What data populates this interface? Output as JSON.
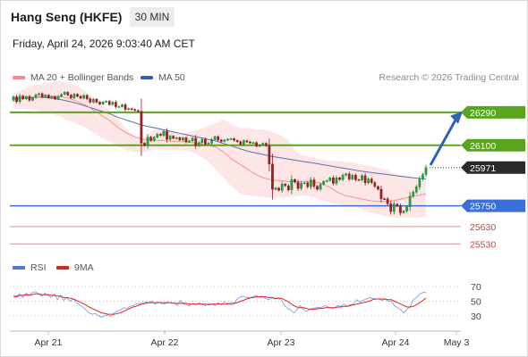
{
  "header": {
    "instrument": "Hang Seng (HKFE)",
    "timeframe": "30 MIN",
    "datetime": "Friday, April 24, 2026 9:03:40 AM CET"
  },
  "legend": {
    "ma20_label": "MA 20 + Bollinger Bands",
    "ma20_color": "#f28b8b",
    "ma50_label": "MA 50",
    "ma50_color": "#3a5fa8",
    "rsi_label": "RSI",
    "rsi_color": "#4a7ad8",
    "rsi_ma_label": "9MA",
    "rsi_ma_color": "#e02020"
  },
  "credit": "Research © 2026 Trading Central",
  "colors": {
    "resistance": "#5aa51e",
    "support": "#3a6fd8",
    "weak_support": "#f08a8a",
    "current_price_bg": "#2b2b2b",
    "candle_up": "#1e7d32",
    "candle_down": "#8b1a1a",
    "band_fill": "#fcdede",
    "arrow": "#2e63b4"
  },
  "chart_data": {
    "type": "candlestick",
    "price_range": [
      25480,
      26470
    ],
    "x_labels": [
      "Apr 21",
      "Apr 22",
      "Apr 23",
      "Apr 24",
      "May 3"
    ],
    "levels": [
      {
        "value": 26290,
        "label": "26290",
        "kind": "resistance"
      },
      {
        "value": 26100,
        "label": "26100",
        "kind": "resistance"
      },
      {
        "value": 25971,
        "label": "25971",
        "kind": "current"
      },
      {
        "value": 25750,
        "label": "25750",
        "kind": "support"
      },
      {
        "value": 25630,
        "label": "25630",
        "kind": "weak_support"
      },
      {
        "value": 25530,
        "label": "25530",
        "kind": "weak_support"
      }
    ],
    "close_series": [
      26380,
      26352,
      26385,
      26368,
      26382,
      26360,
      26375,
      26392,
      26398,
      26380,
      26390,
      26375,
      26381,
      26367,
      26383,
      26394,
      26406,
      26390,
      26374,
      26395,
      26383,
      26372,
      26388,
      26368,
      26349,
      26366,
      26349,
      26338,
      26350,
      26354,
      26335,
      26349,
      26323,
      26323,
      26334,
      26307,
      26312,
      26307,
      26301,
      26296,
      26112,
      26099,
      26147,
      26127,
      26146,
      26164,
      26157,
      26180,
      26134,
      26153,
      26140,
      26144,
      26130,
      26143,
      26120,
      26125,
      26141,
      26097,
      26115,
      26134,
      26107,
      26112,
      26134,
      26150,
      26130,
      26122,
      26130,
      26135,
      26138,
      26128,
      26121,
      26106,
      26126,
      26119,
      26114,
      26115,
      26095,
      26102,
      26111,
      26097,
      25992,
      25845,
      25853,
      25840,
      25876,
      25866,
      25842,
      25902,
      25887,
      25851,
      25881,
      25883,
      25860,
      25900,
      25863,
      25846,
      25874,
      25891,
      25896,
      25912,
      25880,
      25912,
      25902,
      25927,
      25935,
      25905,
      25927,
      25901,
      25900,
      25924,
      25883,
      25905,
      25884,
      25862,
      25846,
      25791,
      25790,
      25762,
      25717,
      25760,
      25748,
      25710,
      25720,
      25744,
      25806,
      25830,
      25860,
      25905,
      25931,
      25971
    ],
    "band_upper": [
      26400,
      26420,
      26440,
      26450,
      26460,
      26470,
      26470,
      26460,
      26440,
      26410,
      26370,
      26330,
      26300,
      26250,
      26190,
      26150,
      26140,
      26180,
      26200,
      26190,
      26170,
      26170,
      26180,
      26190,
      26210,
      26230,
      26250,
      26220,
      26200,
      26200,
      26190,
      26190,
      26180,
      26160,
      26130,
      26060,
      26040,
      26030,
      26020,
      26010,
      26010,
      26005,
      26000,
      25990,
      25980,
      25970,
      25960,
      25940,
      25930,
      25920,
      25900,
      25890
    ],
    "band_lower": [
      26310,
      26310,
      26310,
      26300,
      26290,
      26280,
      26260,
      26240,
      26220,
      26200,
      26170,
      26140,
      26120,
      26090,
      26070,
      26060,
      26060,
      26070,
      26080,
      26075,
      26070,
      26070,
      26060,
      26040,
      26010,
      25960,
      25910,
      25860,
      25820,
      25810,
      25805,
      25800,
      25795,
      25795,
      25800,
      25805,
      25810,
      25800,
      25780,
      25770,
      25760,
      25750,
      25750,
      25730,
      25715,
      25700,
      25690,
      25680,
      25680,
      25680,
      25680,
      25690
    ],
    "ma20": [
      26360,
      26370,
      26375,
      26380,
      26382,
      26383,
      26380,
      26370,
      26350,
      26330,
      26300,
      26270,
      26240,
      26200,
      26170,
      26150,
      26135,
      26130,
      26128,
      26125,
      26122,
      26120,
      26115,
      26110,
      26100,
      26090,
      26060,
      26020,
      25990,
      25960,
      25930,
      25910,
      25900,
      25895,
      25890,
      25890,
      25892,
      25890,
      25880,
      25860,
      25830,
      25810,
      25800,
      25790,
      25780,
      25775,
      25775,
      25780,
      25790,
      25800,
      25810,
      25820
    ],
    "ma50": [
      26370,
      26372,
      26375,
      26378,
      26375,
      26370,
      26362,
      26352,
      26340,
      26325,
      26310,
      26295,
      26280,
      26260,
      26245,
      26230,
      26215,
      26205,
      26195,
      26185,
      26175,
      26165,
      26155,
      26145,
      26135,
      26125,
      26110,
      26095,
      26080,
      26065,
      26055,
      26045,
      26035,
      26028,
      26020,
      26012,
      26005,
      25998,
      25990,
      25982,
      25974,
      25966,
      25958,
      25950,
      25944,
      25938,
      25932,
      25926,
      25920,
      25914,
      25909,
      25904
    ],
    "rsi": {
      "range": [
        15,
        80
      ],
      "ticks": [
        70,
        50,
        30
      ],
      "rsi": [
        58,
        57,
        60,
        55,
        61,
        58,
        62,
        63,
        60,
        57,
        61,
        58,
        55,
        60,
        52,
        58,
        51,
        55,
        50,
        53,
        48,
        45,
        42,
        38,
        34,
        32,
        33,
        30,
        28,
        30,
        31,
        29,
        34,
        36,
        38,
        41,
        40,
        43,
        44,
        46,
        47,
        47,
        49,
        48,
        50,
        46,
        49,
        47,
        46,
        49,
        47,
        48,
        44,
        51,
        46,
        45,
        44,
        47,
        45,
        48,
        45,
        44,
        47,
        46,
        44,
        48,
        45,
        49,
        47,
        45,
        46,
        53,
        56,
        57,
        55,
        55,
        56,
        58,
        56,
        57,
        54,
        52,
        55,
        53,
        55,
        52,
        45,
        40,
        38,
        34,
        38,
        44,
        39,
        36,
        38,
        40,
        41,
        41,
        42,
        44,
        42,
        40,
        41,
        44,
        43,
        46,
        43,
        45,
        46,
        52,
        49,
        51,
        53,
        55,
        54,
        53,
        53,
        51,
        53,
        50,
        50,
        44,
        41,
        38,
        34,
        39,
        43,
        52,
        55,
        60,
        62,
        62
      ],
      "ma9": [
        56,
        56,
        58,
        58,
        59,
        58,
        59,
        60,
        60,
        59,
        59,
        59,
        58,
        58,
        57,
        57,
        55,
        55,
        54,
        53,
        51,
        49,
        47,
        45,
        42,
        40,
        38,
        36,
        34,
        33,
        32,
        32,
        32,
        33,
        34,
        36,
        38,
        40,
        42,
        43,
        45,
        46,
        47,
        48,
        48,
        48,
        48,
        48,
        48,
        48,
        48,
        47,
        47,
        47,
        47,
        47,
        46,
        46,
        46,
        46,
        46,
        46,
        45,
        46,
        46,
        46,
        46,
        46,
        46,
        47,
        47,
        48,
        50,
        51,
        53,
        54,
        55,
        56,
        56,
        56,
        56,
        55,
        55,
        54,
        54,
        54,
        52,
        50,
        47,
        44,
        42,
        41,
        41,
        40,
        39,
        39,
        39,
        40,
        40,
        41,
        41,
        41,
        41,
        42,
        42,
        43,
        43,
        44,
        45,
        46,
        47,
        48,
        49,
        50,
        52,
        53,
        53,
        53,
        53,
        52,
        52,
        50,
        48,
        46,
        44,
        42,
        42,
        43,
        45,
        48,
        51,
        54
      ]
    }
  }
}
